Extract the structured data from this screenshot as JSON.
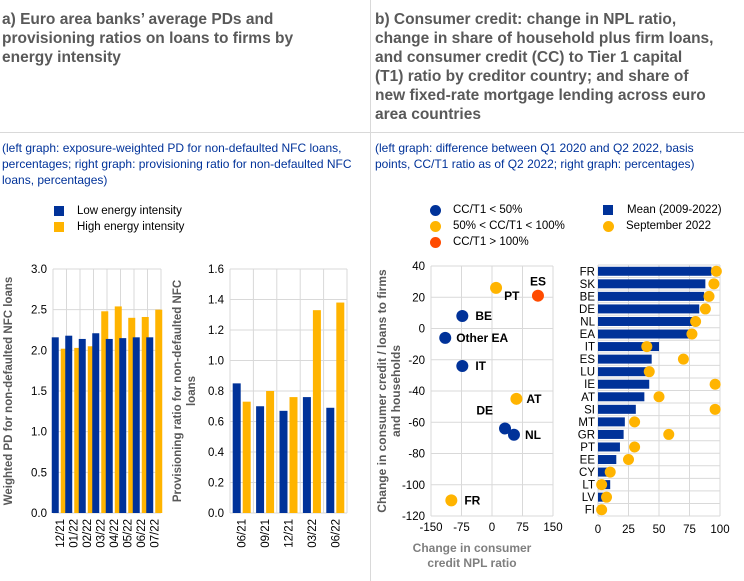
{
  "panel_a": {
    "title": "a) Euro area banks’ average PDs and provisioning ratios on loans to firms by energy intensity",
    "title_lines": [
      "a) Euro area banks’ average PDs and",
      "provisioning ratios on loans to firms by",
      "energy intensity"
    ],
    "subtitle_lines": [
      "(left graph: exposure-weighted PD for non-defaulted NFC loans,",
      "percentages; right graph: provisioning ratio for non-defaulted NFC",
      "loans, percentages)"
    ],
    "legend": [
      {
        "label": "Low energy intensity",
        "color": "#003299"
      },
      {
        "label": "High energy intensity",
        "color": "#FFB400"
      }
    ]
  },
  "panel_b": {
    "title_lines": [
      "b) Consumer credit: change in NPL ratio,",
      "change in share of household plus firm loans,",
      "and consumer credit (CC) to Tier 1 capital",
      "(T1) ratio by creditor country; and share of",
      "new fixed-rate mortgage lending across euro",
      "area countries"
    ],
    "subtitle_lines": [
      "(left graph: difference between Q1 2020 and Q2 2022, basis",
      "points, CC/T1 ratio as of Q2 2022; right graph: percentages)"
    ],
    "legend_left": [
      {
        "label": "CC/T1 < 50%",
        "color": "#003299"
      },
      {
        "label": "50% < CC/T1 < 100%",
        "color": "#FFB400"
      },
      {
        "label": "CC/T1 > 100%",
        "color": "#FF4B00"
      }
    ],
    "legend_right": [
      {
        "label": "Mean (2009-2022)",
        "color": "#003299",
        "shape": "square"
      },
      {
        "label": "September 2022",
        "color": "#FFB400",
        "shape": "circle"
      }
    ]
  },
  "chart_data": [
    {
      "type": "bar",
      "title": "Weighted PD for non-defaulted NFC loans",
      "xlabel": "",
      "ylabel": "Weighted PD for non-defaulted NFC loans",
      "categories": [
        "12/21",
        "01/22",
        "02/22",
        "03/22",
        "04/22",
        "05/22",
        "06/22",
        "07/22"
      ],
      "series": [
        {
          "name": "Low energy intensity",
          "color": "#003299",
          "values": [
            2.16,
            2.18,
            2.14,
            2.21,
            2.14,
            2.15,
            2.16,
            2.16
          ]
        },
        {
          "name": "High energy intensity",
          "color": "#FFB400",
          "values": [
            2.02,
            2.03,
            2.05,
            2.48,
            2.54,
            2.4,
            2.41,
            2.5
          ]
        }
      ],
      "ylim": [
        0,
        3.0
      ],
      "yticks": [
        "0.0",
        "0.5",
        "1.0",
        "1.5",
        "2.0",
        "2.5",
        "3.0"
      ],
      "grid": true
    },
    {
      "type": "bar",
      "title": "Provisioning ratio for non-defaulted NFC loans",
      "xlabel": "",
      "ylabel_lines": [
        "Provisioning ratio for non-defaulted NFC",
        "loans"
      ],
      "categories": [
        "06/21",
        "09/21",
        "12/21",
        "03/22",
        "06/22"
      ],
      "series": [
        {
          "name": "Low energy intensity",
          "color": "#003299",
          "values": [
            0.85,
            0.7,
            0.67,
            0.76,
            0.69
          ]
        },
        {
          "name": "High energy intensity",
          "color": "#FFB400",
          "values": [
            0.73,
            0.8,
            0.76,
            1.33,
            1.38
          ]
        }
      ],
      "ylim": [
        0,
        1.6
      ],
      "yticks": [
        "0.0",
        "0.2",
        "0.4",
        "0.6",
        "0.8",
        "1.0",
        "1.2",
        "1.4",
        "1.6"
      ],
      "grid": true
    },
    {
      "type": "scatter",
      "title": "Consumer credit NPL ratio vs loan share change",
      "xlabel_lines": [
        "Change in consumer",
        "credit NPL ratio"
      ],
      "ylabel_lines": [
        "Change in consumer credit / loans to firms",
        "and households"
      ],
      "xlim": [
        -150,
        150
      ],
      "ylim": [
        -120,
        40
      ],
      "xticks": [
        "-150",
        "-75",
        "0",
        "75",
        "150"
      ],
      "yticks": [
        "-120",
        "-100",
        "-80",
        "-60",
        "-40",
        "-20",
        "0",
        "20",
        "40"
      ],
      "grid": true,
      "points": [
        {
          "label": "PT",
          "x": 10,
          "y": 26,
          "group": "50% < CC/T1 < 100%",
          "color": "#FFB400"
        },
        {
          "label": "ES",
          "x": 113,
          "y": 21,
          "group": "CC/T1 > 100%",
          "color": "#FF4B00"
        },
        {
          "label": "BE",
          "x": -73,
          "y": 8,
          "group": "CC/T1 < 50%",
          "color": "#003299"
        },
        {
          "label": "Other EA",
          "x": -115,
          "y": -6,
          "group": "CC/T1 < 50%",
          "color": "#003299"
        },
        {
          "label": "IT",
          "x": -73,
          "y": -24,
          "group": "CC/T1 < 50%",
          "color": "#003299"
        },
        {
          "label": "AT",
          "x": 60,
          "y": -45,
          "group": "50% < CC/T1 < 100%",
          "color": "#FFB400"
        },
        {
          "label": "DE",
          "x": 32,
          "y": -64,
          "group": "CC/T1 < 50%",
          "color": "#003299"
        },
        {
          "label": "NL",
          "x": 54,
          "y": -68,
          "group": "CC/T1 < 50%",
          "color": "#003299"
        },
        {
          "label": "FR",
          "x": -100,
          "y": -110,
          "group": "50% < CC/T1 < 100%",
          "color": "#FFB400"
        }
      ]
    },
    {
      "type": "bar",
      "orientation": "horizontal",
      "title": "Share of new fixed-rate mortgage lending",
      "categories": [
        "FR",
        "SK",
        "BE",
        "DE",
        "NL",
        "EA",
        "IT",
        "ES",
        "LU",
        "IE",
        "AT",
        "SI",
        "MT",
        "GR",
        "PT",
        "EE",
        "CY",
        "LT",
        "LV",
        "FI"
      ],
      "series": [
        {
          "name": "Mean (2009-2022)",
          "color": "#003299",
          "type": "bar",
          "values": [
            93,
            88,
            87,
            83,
            78,
            75,
            50,
            44,
            40,
            42,
            38,
            31,
            22,
            21,
            18,
            15,
            8,
            10,
            6,
            0
          ]
        },
        {
          "name": "September 2022",
          "color": "#FFB400",
          "type": "dot",
          "values": [
            97,
            95,
            91,
            88,
            80,
            77,
            40,
            70,
            42,
            96,
            50,
            96,
            30,
            58,
            30,
            25,
            10,
            3,
            7,
            3
          ]
        }
      ],
      "xlim": [
        0,
        100
      ],
      "xticks": [
        "0",
        "25",
        "50",
        "75",
        "100"
      ],
      "grid": true
    }
  ]
}
